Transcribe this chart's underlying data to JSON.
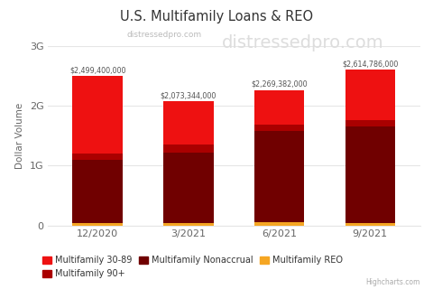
{
  "title": "U.S. Multifamily Loans & REO",
  "subtitle": "distressedpro.com",
  "watermark": "distressedpro.com",
  "ylabel": "Dollar Volume",
  "categories": [
    "12/2020",
    "3/2021",
    "6/2021",
    "9/2021"
  ],
  "totals": [
    "$2,499,400,000",
    "$2,073,344,000",
    "$2,269,382,000",
    "$2,614,786,000"
  ],
  "total_values": [
    2499400000,
    2073344000,
    2269382000,
    2614786000
  ],
  "series": {
    "Multifamily REO": [
      40000000,
      40000000,
      50000000,
      45000000
    ],
    "Multifamily Nonaccrual": [
      1060000000,
      1180000000,
      1530000000,
      1610000000
    ],
    "Multifamily 90+": [
      100000000,
      130000000,
      110000000,
      115000000
    ],
    "Multifamily 30-89": [
      1299400000,
      723344000,
      579382000,
      839786000
    ]
  },
  "colors": {
    "Multifamily REO": "#f5a623",
    "Multifamily Nonaccrual": "#700000",
    "Multifamily 90+": "#aa0000",
    "Multifamily 30-89": "#ee1111"
  },
  "legend_order": [
    "Multifamily 30-89",
    "Multifamily 90+",
    "Multifamily Nonaccrual",
    "Multifamily REO"
  ],
  "ylim": [
    0,
    3000000000
  ],
  "yticks": [
    0,
    1000000000,
    2000000000,
    3000000000
  ],
  "ytick_labels": [
    "0",
    "1G",
    "2G",
    "3G"
  ],
  "background_color": "#ffffff",
  "grid_color": "#e6e6e6",
  "footer": "Highcharts.com"
}
